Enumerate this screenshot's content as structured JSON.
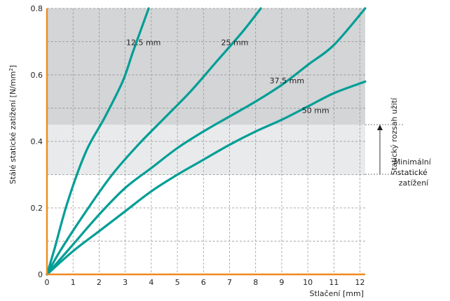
{
  "chart_data": {
    "type": "line",
    "xlabel": "Stlačení [mm]",
    "ylabel_main": "Stálé statické zatížení [N/mm",
    "ylabel_sup": "2",
    "ylabel_close": "]",
    "xlim": [
      0,
      12.2
    ],
    "ylim": [
      0,
      0.8
    ],
    "x_ticks": [
      0,
      1,
      2,
      3,
      4,
      5,
      6,
      7,
      8,
      9,
      10,
      11,
      12
    ],
    "y_ticks": [
      0,
      0.2,
      0.4,
      0.6,
      0.8
    ],
    "y_tick_labels": [
      "0",
      "0.2",
      "0.4",
      "0.6",
      "0.8"
    ],
    "grid": true,
    "bands": [
      {
        "from": 0.45,
        "to": 0.8,
        "color": "#d3d5d7"
      },
      {
        "from": 0.3,
        "to": 0.45,
        "color": "#e8eaeb"
      }
    ],
    "series": [
      {
        "name": "12.5 mm",
        "label_at": [
          3.7,
          0.69
        ],
        "x": [
          0,
          0.3,
          0.8,
          1.5,
          2.2,
          2.9,
          3.3,
          3.9
        ],
        "y": [
          0,
          0.08,
          0.22,
          0.37,
          0.47,
          0.58,
          0.67,
          0.8
        ]
      },
      {
        "name": "25 mm",
        "label_at": [
          7.2,
          0.69
        ],
        "x": [
          0,
          0.5,
          1.5,
          2.5,
          3.5,
          4.5,
          5.5,
          6.5,
          7.5,
          8.2
        ],
        "y": [
          0,
          0.07,
          0.19,
          0.3,
          0.39,
          0.47,
          0.55,
          0.64,
          0.73,
          0.8
        ]
      },
      {
        "name": "37.5 mm",
        "label_at": [
          9.2,
          0.575
        ],
        "x": [
          0,
          1,
          2,
          3,
          4,
          5,
          6,
          7,
          8,
          9,
          10,
          11,
          12.2
        ],
        "y": [
          0,
          0.09,
          0.18,
          0.26,
          0.32,
          0.38,
          0.43,
          0.475,
          0.52,
          0.57,
          0.63,
          0.69,
          0.8
        ]
      },
      {
        "name": "50 mm",
        "label_at": [
          10.3,
          0.485
        ],
        "x": [
          0,
          1,
          2,
          3,
          4,
          5,
          6,
          7,
          8,
          9,
          10,
          11,
          12.2
        ],
        "y": [
          0,
          0.07,
          0.13,
          0.19,
          0.25,
          0.3,
          0.345,
          0.39,
          0.43,
          0.465,
          0.505,
          0.545,
          0.58
        ]
      }
    ],
    "line_color": "#009e96",
    "axis_color": "#ef8a1e",
    "annotations": {
      "range_label": "Statický rozsah užití",
      "min_load_lines": [
        "Minimální",
        "statické",
        "zatížení"
      ]
    }
  }
}
